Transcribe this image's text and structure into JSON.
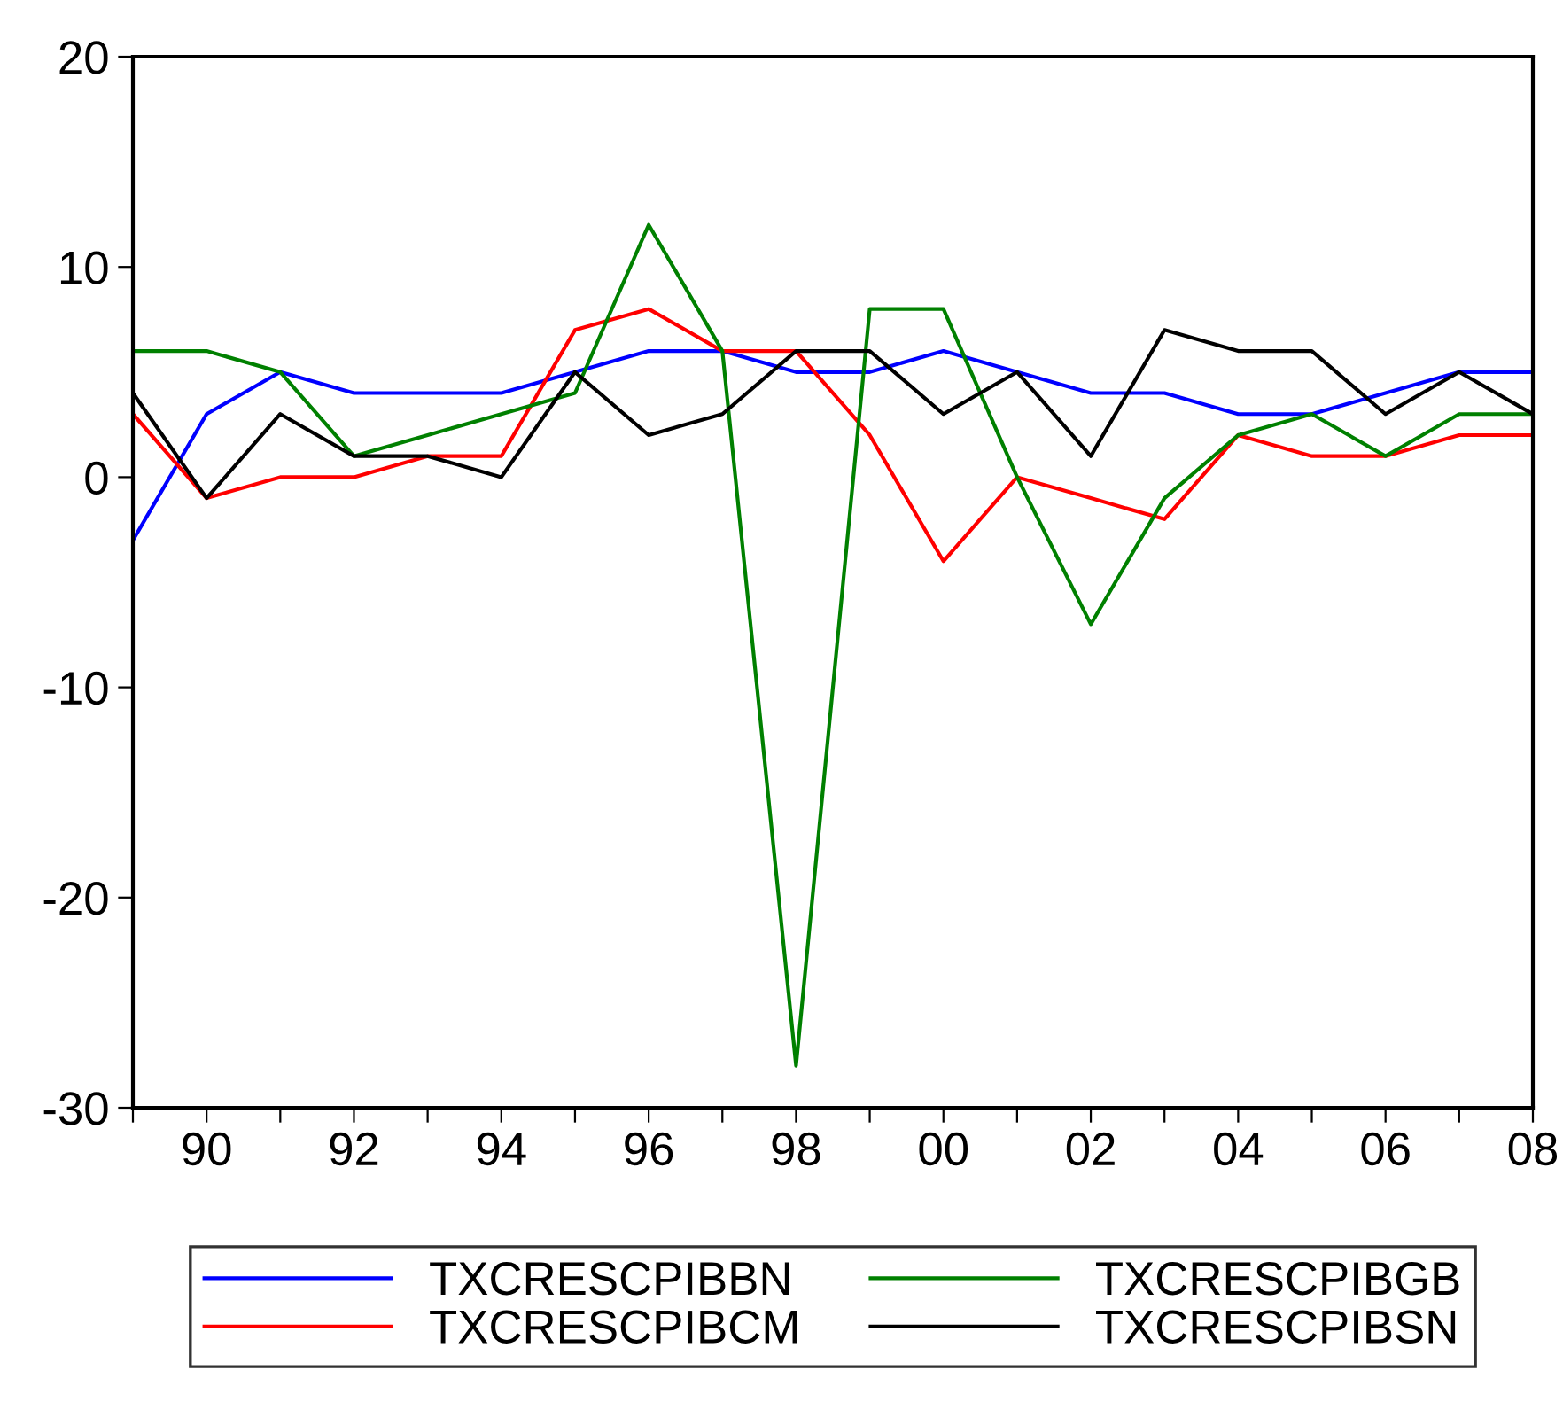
{
  "chart_data": {
    "type": "line",
    "x": [
      1989,
      1990,
      1991,
      1992,
      1993,
      1994,
      1995,
      1996,
      1997,
      1998,
      1999,
      2000,
      2001,
      2002,
      2003,
      2004,
      2005,
      2006,
      2007,
      2008
    ],
    "series": [
      {
        "name": "TXCRESCPIBBN",
        "color": "#0000ff",
        "values": [
          -3,
          3,
          5,
          4,
          4,
          4,
          5,
          6,
          6,
          5,
          5,
          6,
          5,
          4,
          4,
          3,
          3,
          4,
          5,
          5
        ]
      },
      {
        "name": "TXCRESCPIBCM",
        "color": "#ff0000",
        "values": [
          3,
          -1,
          0,
          0,
          1,
          1,
          7,
          8,
          6,
          6,
          2,
          -4,
          0,
          -1,
          -2,
          2,
          1,
          1,
          2,
          2
        ]
      },
      {
        "name": "TXCRESCPIBGB",
        "color": "#008000",
        "values": [
          6,
          6,
          5,
          1,
          2,
          3,
          4,
          12,
          6,
          -28,
          8,
          8,
          0,
          -7,
          -1,
          2,
          3,
          1,
          3,
          3
        ]
      },
      {
        "name": "TXCRESCPIBSN",
        "color": "#000000",
        "values": [
          4,
          -1,
          3,
          1,
          1,
          0,
          5,
          2,
          3,
          6,
          6,
          3,
          5,
          1,
          7,
          6,
          6,
          3,
          5,
          3
        ]
      }
    ],
    "xlim": [
      1989,
      2008
    ],
    "xticks": [
      {
        "value": 1989,
        "label": null
      },
      {
        "value": 1990,
        "label": "90"
      },
      {
        "value": 1991,
        "label": null
      },
      {
        "value": 1992,
        "label": "92"
      },
      {
        "value": 1993,
        "label": null
      },
      {
        "value": 1994,
        "label": "94"
      },
      {
        "value": 1995,
        "label": null
      },
      {
        "value": 1996,
        "label": "96"
      },
      {
        "value": 1997,
        "label": null
      },
      {
        "value": 1998,
        "label": "98"
      },
      {
        "value": 1999,
        "label": null
      },
      {
        "value": 2000,
        "label": "00"
      },
      {
        "value": 2001,
        "label": null
      },
      {
        "value": 2002,
        "label": "02"
      },
      {
        "value": 2003,
        "label": null
      },
      {
        "value": 2004,
        "label": "04"
      },
      {
        "value": 2005,
        "label": null
      },
      {
        "value": 2006,
        "label": "06"
      },
      {
        "value": 2007,
        "label": null
      },
      {
        "value": 2008,
        "label": "08"
      }
    ],
    "ylim": [
      -30,
      20
    ],
    "yticks": [
      -30,
      -20,
      -10,
      0,
      10,
      20
    ],
    "grid": false,
    "legend": "bottom",
    "line_style": "solid"
  }
}
